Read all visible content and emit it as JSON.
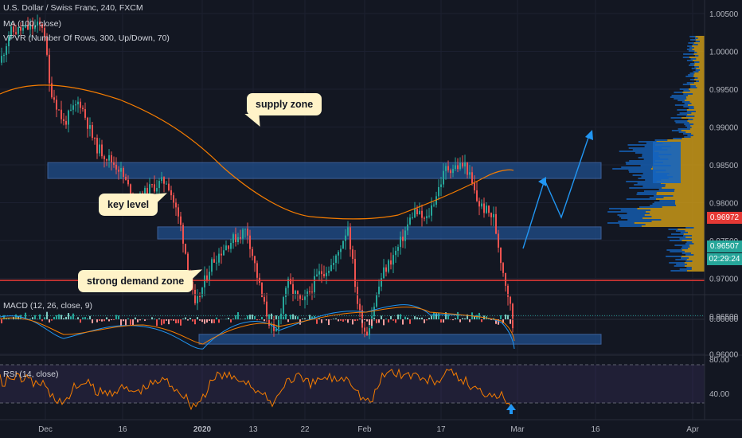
{
  "header": {
    "symbol_line": "U.S. Dollar / Swiss Franc, 240, FXCM",
    "ma_line": "MA (100, close)",
    "vpvr_line": "VPVR (Number Of Rows, 300, Up/Down, 70)"
  },
  "annotations": {
    "supply": "supply zone",
    "key": "key level",
    "demand": "strong demand zone"
  },
  "price_axis": {
    "ticks": [
      "1.00500",
      "1.00000",
      "0.99500",
      "0.99000",
      "0.98500",
      "0.98000",
      "0.97500",
      "0.97000",
      "0.96500",
      "0.96000"
    ],
    "tick_values": [
      1.005,
      1.0,
      0.995,
      0.99,
      0.985,
      0.98,
      0.975,
      0.97,
      0.965,
      0.96
    ],
    "red_level_label": "0.96972",
    "red_level_value": 0.96972,
    "current_price_label": "0.96507",
    "current_price_value": 0.96507,
    "countdown": "02:29:24"
  },
  "time_axis": {
    "labels": [
      "Dec",
      "16",
      "2020",
      "13",
      "22",
      "Feb",
      "17",
      "Mar",
      "16",
      "Apr"
    ]
  },
  "macd": {
    "title": "MACD (12, 26, close, 9)",
    "tick": "0.00000"
  },
  "rsi": {
    "title": "RSI (14, close)",
    "ticks": [
      "80.00",
      "40.00"
    ]
  },
  "zones": [
    {
      "name": "supply",
      "top": 0.9853,
      "bottom": 0.9832
    },
    {
      "name": "key",
      "top": 0.9768,
      "bottom": 0.9752
    },
    {
      "name": "demand",
      "top": 0.9626,
      "bottom": 0.9613
    }
  ],
  "colors": {
    "background": "#131722",
    "up": "#26a69a",
    "down": "#ef5350",
    "ma": "#f57c00",
    "zone": "#1f4e8c",
    "red_level": "#e53935",
    "callout": "#fff3c8",
    "projection": "#2196f3",
    "vpvr_up": "#d4a017",
    "vpvr_down": "#1565c0"
  }
}
